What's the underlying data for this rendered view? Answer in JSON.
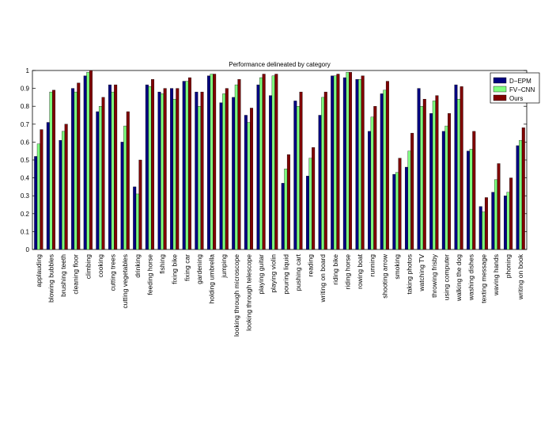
{
  "chart_data": {
    "type": "bar",
    "title": "Performance delineated by category",
    "xlabel": "",
    "ylabel": "",
    "ylim": [
      0,
      1
    ],
    "yticks": [
      "0",
      "0.1",
      "0.2",
      "0.3",
      "0.4",
      "0.5",
      "0.6",
      "0.7",
      "0.8",
      "0.9",
      "1"
    ],
    "grid": false,
    "legend_position": "top-right",
    "categories": [
      "applauding",
      "blowing bubbles",
      "brushing teeth",
      "cleaning floor",
      "climbing",
      "cooking",
      "cutting trees",
      "cutting vegetables",
      "drinking",
      "feeding horse",
      "fishing",
      "fixing bike",
      "fixing car",
      "gardening",
      "holding umbrella",
      "jumping",
      "looking through microscope",
      "looking through telescope",
      "playing guitar",
      "playing violin",
      "pouring liquid",
      "pushing cart",
      "reading",
      "writing on board",
      "riding bike",
      "riding horse",
      "rowing boat",
      "running",
      "shooting arrow",
      "smoking",
      "taking photos",
      "watching TV",
      "throwing frisby",
      "using computer",
      "walking the dog",
      "washing dishes",
      "texting message",
      "waving hands",
      "phoning",
      "writing on book"
    ],
    "series": [
      {
        "name": "D−EPM",
        "color": "#000080",
        "values": [
          0.52,
          0.71,
          0.61,
          0.9,
          0.97,
          0.77,
          0.92,
          0.6,
          0.35,
          0.92,
          0.88,
          0.9,
          0.94,
          0.88,
          0.97,
          0.82,
          0.85,
          0.75,
          0.92,
          0.86,
          0.37,
          0.83,
          0.41,
          0.75,
          0.97,
          0.96,
          0.95,
          0.66,
          0.87,
          0.42,
          0.46,
          0.9,
          0.76,
          0.66,
          0.92,
          0.55,
          0.24,
          0.32,
          0.3,
          0.58
        ]
      },
      {
        "name": "FV−CNN",
        "color": "#7fff7f",
        "values": [
          0.59,
          0.88,
          0.66,
          0.88,
          0.99,
          0.8,
          0.88,
          0.69,
          0.31,
          0.91,
          0.87,
          0.84,
          0.94,
          0.8,
          0.98,
          0.87,
          0.92,
          0.71,
          0.96,
          0.97,
          0.45,
          0.8,
          0.51,
          0.85,
          0.97,
          0.99,
          0.95,
          0.74,
          0.89,
          0.43,
          0.55,
          0.8,
          0.83,
          0.69,
          0.84,
          0.56,
          0.21,
          0.39,
          0.32,
          0.61
        ]
      },
      {
        "name": "Ours",
        "color": "#800000",
        "values": [
          0.67,
          0.89,
          0.7,
          0.93,
          1.0,
          0.85,
          0.92,
          0.77,
          0.5,
          0.95,
          0.9,
          0.9,
          0.96,
          0.88,
          0.98,
          0.9,
          0.95,
          0.79,
          0.98,
          0.98,
          0.53,
          0.88,
          0.57,
          0.88,
          0.98,
          0.99,
          0.97,
          0.8,
          0.94,
          0.51,
          0.65,
          0.84,
          0.86,
          0.76,
          0.91,
          0.66,
          0.29,
          0.48,
          0.4,
          0.68
        ]
      }
    ]
  }
}
